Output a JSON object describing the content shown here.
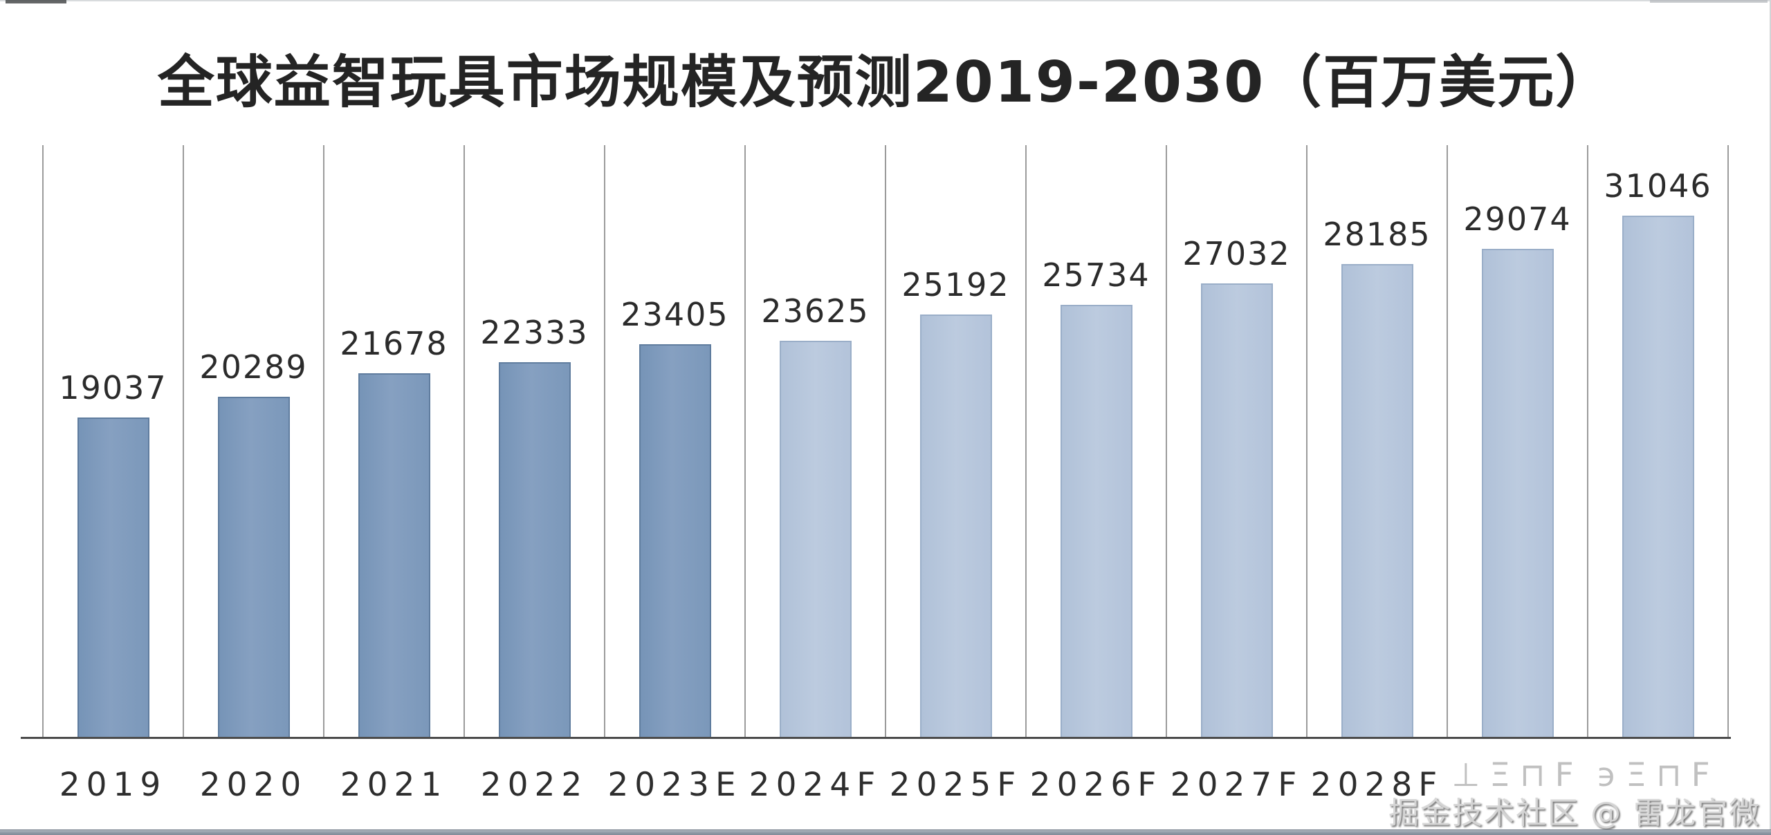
{
  "title": "全球益智玩具市场规模及预测2019-2030（百万美元）",
  "watermark": "掘金技术社区 @ 雷龙官微",
  "chart_data": {
    "type": "bar",
    "title": "全球益智玩具市场规模及预测2019-2030（百万美元）",
    "unit": "百万美元",
    "categories": [
      "2019",
      "2020",
      "2021",
      "2022",
      "2023E",
      "2024F",
      "2025F",
      "2026F",
      "2027F",
      "2028F",
      "⊥Ξ⊓Ϝ",
      "϶Ξ⊓Ϝ"
    ],
    "values": [
      19037,
      20289,
      21678,
      22333,
      23405,
      23625,
      25192,
      25734,
      27032,
      28185,
      29074,
      31046
    ],
    "data_labels": [
      19037,
      20289,
      21678,
      22333,
      23405,
      23625,
      25192,
      25734,
      27032,
      28185,
      29074,
      31046
    ],
    "historical_count": 5,
    "degraded_category_indices": [
      10,
      11
    ],
    "colors": {
      "historical_bar": "#7f9bbc",
      "forecast_bar": "#b7c6db",
      "gridline": "#9b9b9b",
      "baseline": "#4c4c4c",
      "label_text": "#2b2b2b"
    },
    "ylim": [
      0,
      35000
    ],
    "xlabel": "",
    "ylabel": "",
    "legend": "none",
    "grid": "vertical-only"
  }
}
